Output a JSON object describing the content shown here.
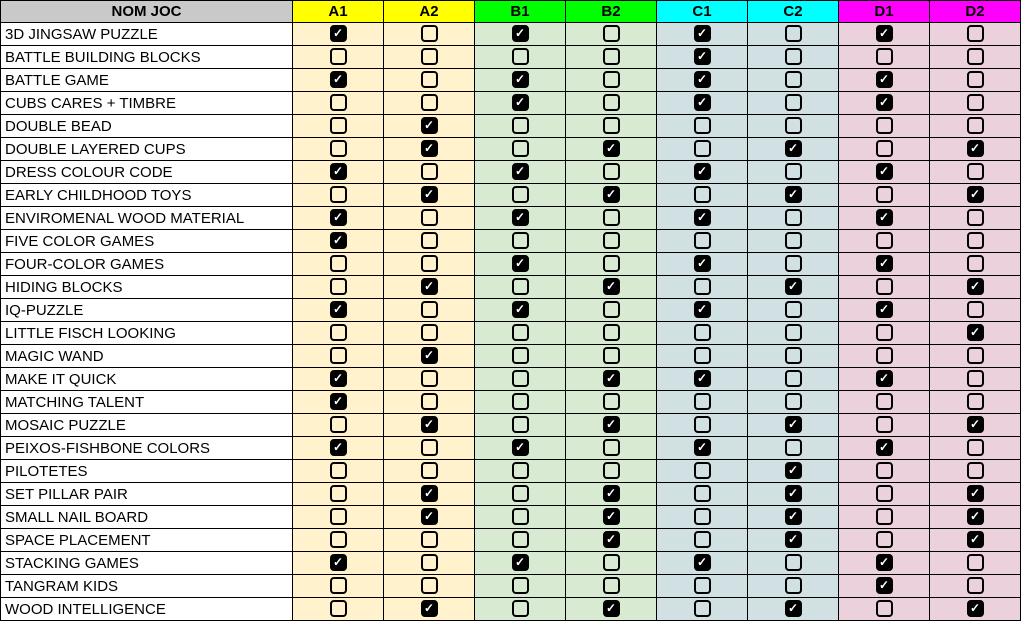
{
  "sheet": {
    "name_header": "NOM JOC",
    "columns": [
      {
        "label": "A1",
        "group": "A"
      },
      {
        "label": "A2",
        "group": "A"
      },
      {
        "label": "B1",
        "group": "B"
      },
      {
        "label": "B2",
        "group": "B"
      },
      {
        "label": "C1",
        "group": "C"
      },
      {
        "label": "C2",
        "group": "C"
      },
      {
        "label": "D1",
        "group": "D"
      },
      {
        "label": "D2",
        "group": "D"
      }
    ],
    "colors": {
      "header_name_bg": "#c9c9c9",
      "header_A": "#ffff00",
      "header_B": "#00ff00",
      "header_C": "#00ffff",
      "header_D": "#ff00ff",
      "body_A": "#fff2cc",
      "body_B": "#d9ead3",
      "body_C": "#d0e0e3",
      "body_D": "#ead1dc",
      "grid": "#000000",
      "check_fill": "#000000",
      "check_mark_glyph": "✓",
      "check_mark_color": "#ffffff"
    },
    "rows": [
      {
        "name": "3D JINGSAW PUZZLE",
        "checks": [
          true,
          false,
          true,
          false,
          true,
          false,
          true,
          false
        ]
      },
      {
        "name": "BATTLE BUILDING BLOCKS",
        "checks": [
          false,
          false,
          false,
          false,
          true,
          false,
          false,
          false
        ]
      },
      {
        "name": "BATTLE GAME",
        "checks": [
          true,
          false,
          true,
          false,
          true,
          false,
          true,
          false
        ]
      },
      {
        "name": "CUBS CARES + TIMBRE",
        "checks": [
          false,
          false,
          true,
          false,
          true,
          false,
          true,
          false
        ]
      },
      {
        "name": "DOUBLE BEAD",
        "checks": [
          false,
          true,
          false,
          false,
          false,
          false,
          false,
          false
        ]
      },
      {
        "name": "DOUBLE LAYERED CUPS",
        "checks": [
          false,
          true,
          false,
          true,
          false,
          true,
          false,
          true
        ]
      },
      {
        "name": "DRESS COLOUR CODE",
        "checks": [
          true,
          false,
          true,
          false,
          true,
          false,
          true,
          false
        ]
      },
      {
        "name": "EARLY CHILDHOOD TOYS",
        "checks": [
          false,
          true,
          false,
          true,
          false,
          true,
          false,
          true
        ]
      },
      {
        "name": "ENVIROMENAL WOOD MATERIAL",
        "checks": [
          true,
          false,
          true,
          false,
          true,
          false,
          true,
          false
        ]
      },
      {
        "name": "FIVE COLOR GAMES",
        "checks": [
          true,
          false,
          false,
          false,
          false,
          false,
          false,
          false
        ]
      },
      {
        "name": "FOUR-COLOR GAMES",
        "checks": [
          false,
          false,
          true,
          false,
          true,
          false,
          true,
          false
        ]
      },
      {
        "name": "HIDING BLOCKS",
        "checks": [
          false,
          true,
          false,
          true,
          false,
          true,
          false,
          true
        ]
      },
      {
        "name": "IQ-PUZZLE",
        "checks": [
          true,
          false,
          true,
          false,
          true,
          false,
          true,
          false
        ]
      },
      {
        "name": "LITTLE FISCH LOOKING",
        "checks": [
          false,
          false,
          false,
          false,
          false,
          false,
          false,
          true
        ]
      },
      {
        "name": "MAGIC WAND",
        "checks": [
          false,
          true,
          false,
          false,
          false,
          false,
          false,
          false
        ]
      },
      {
        "name": "MAKE IT QUICK",
        "checks": [
          true,
          false,
          false,
          true,
          true,
          false,
          true,
          false
        ]
      },
      {
        "name": "MATCHING TALENT",
        "checks": [
          true,
          false,
          false,
          false,
          false,
          false,
          false,
          false
        ]
      },
      {
        "name": "MOSAIC PUZZLE",
        "checks": [
          false,
          true,
          false,
          true,
          false,
          true,
          false,
          true
        ]
      },
      {
        "name": "PEIXOS-FISHBONE COLORS",
        "checks": [
          true,
          false,
          true,
          false,
          true,
          false,
          true,
          false
        ]
      },
      {
        "name": "PILOTETES",
        "checks": [
          false,
          false,
          false,
          false,
          false,
          true,
          false,
          false
        ]
      },
      {
        "name": "SET PILLAR PAIR",
        "checks": [
          false,
          true,
          false,
          true,
          false,
          true,
          false,
          true
        ]
      },
      {
        "name": "SMALL NAIL BOARD",
        "checks": [
          false,
          true,
          false,
          true,
          false,
          true,
          false,
          true
        ]
      },
      {
        "name": "SPACE PLACEMENT",
        "checks": [
          false,
          false,
          false,
          true,
          false,
          true,
          false,
          true
        ]
      },
      {
        "name": "STACKING GAMES",
        "checks": [
          true,
          false,
          true,
          false,
          true,
          false,
          true,
          false
        ]
      },
      {
        "name": "TANGRAM KIDS",
        "checks": [
          false,
          false,
          false,
          false,
          false,
          false,
          true,
          false
        ]
      },
      {
        "name": "WOOD INTELLIGENCE",
        "checks": [
          false,
          true,
          false,
          true,
          false,
          true,
          false,
          true
        ]
      }
    ]
  }
}
